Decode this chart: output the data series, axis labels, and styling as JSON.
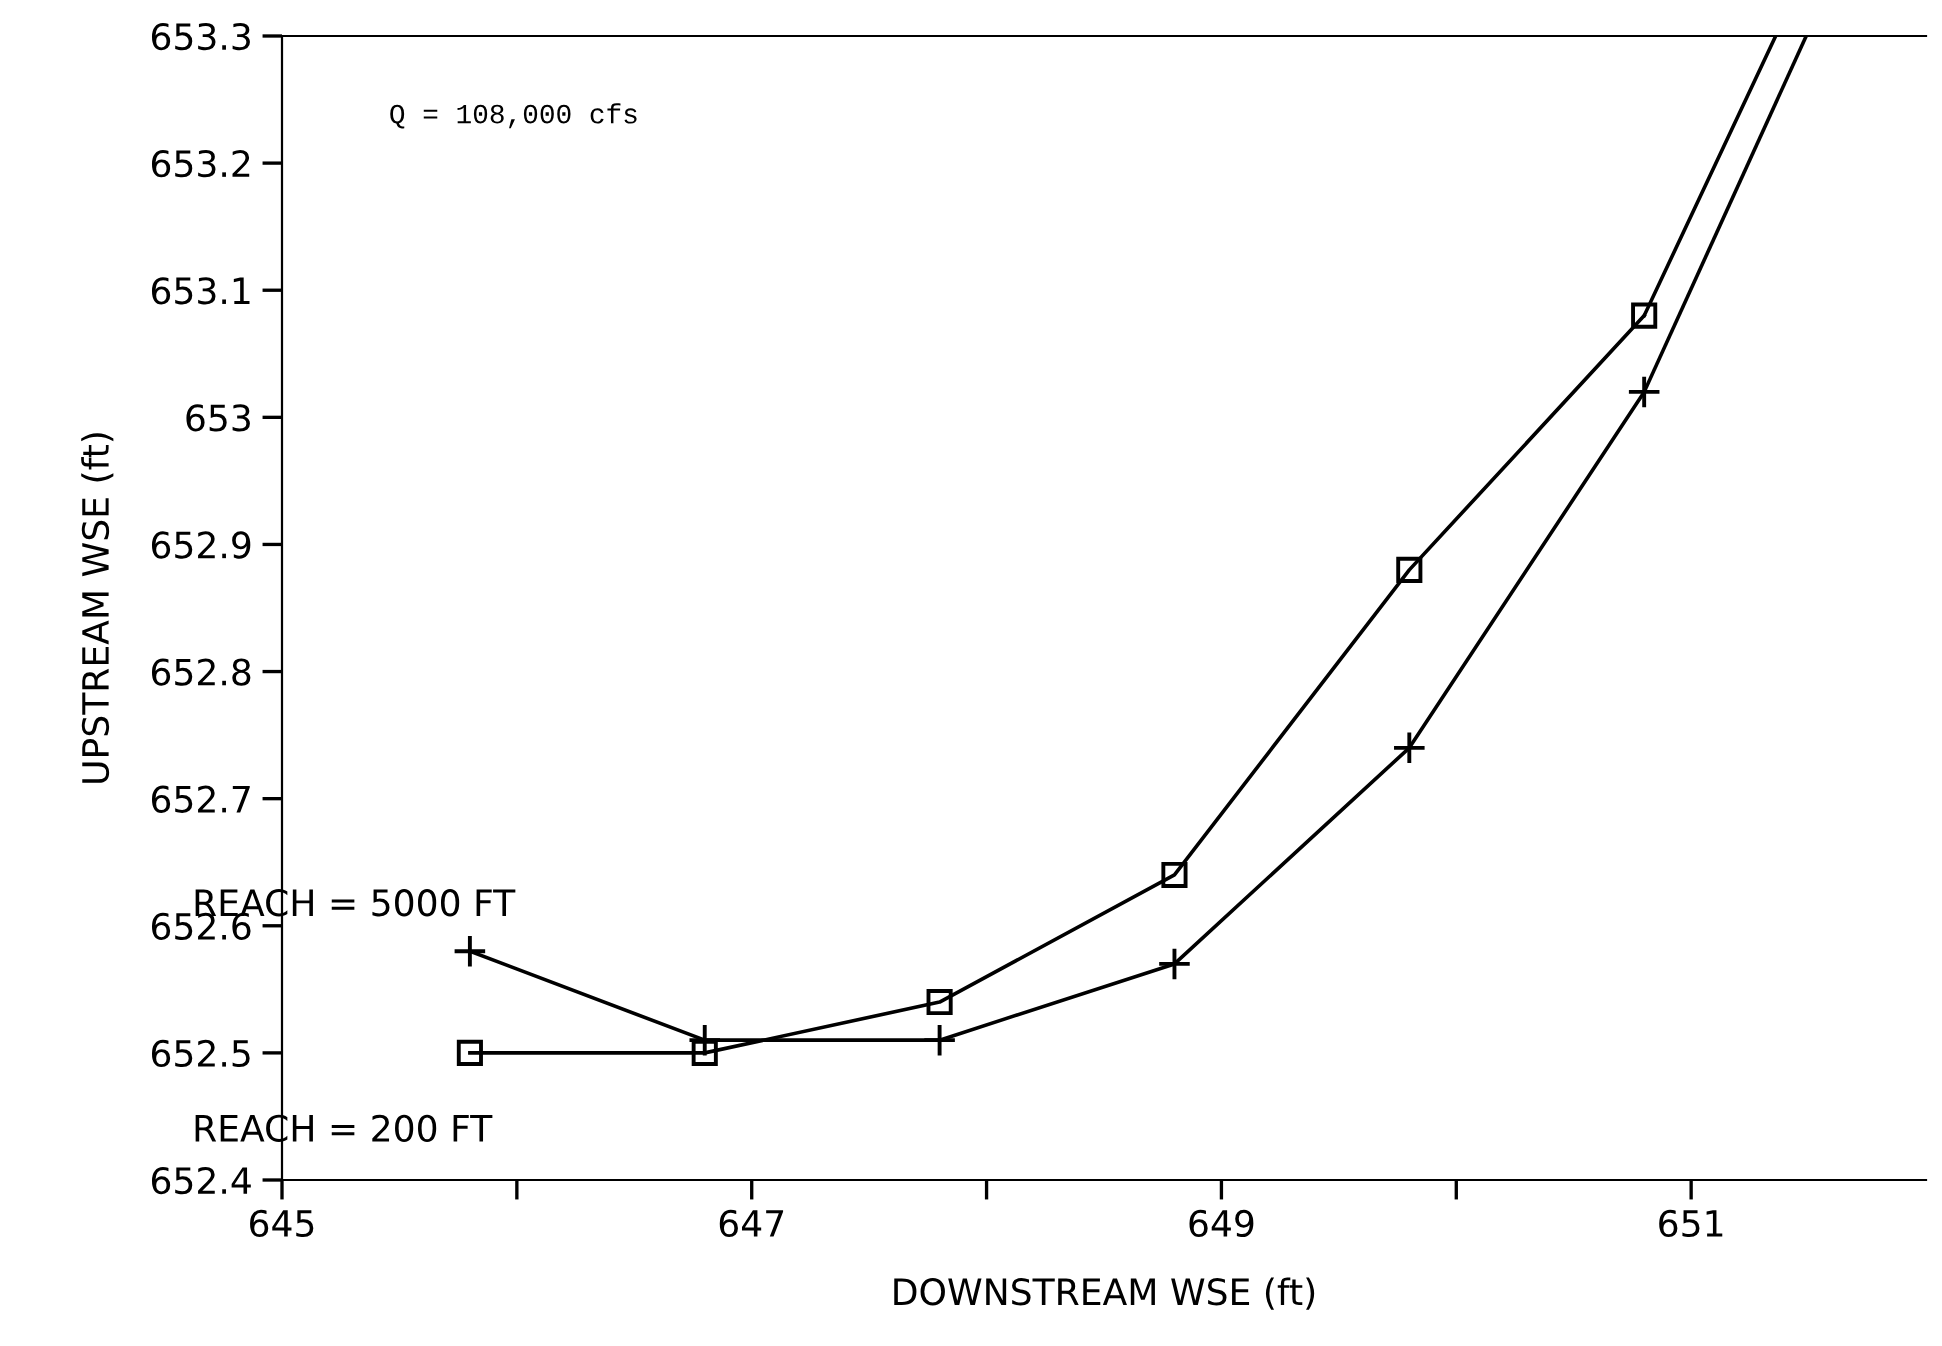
{
  "chart_data": {
    "type": "line",
    "xlabel": "DOWNSTREAM WSE (ft)",
    "ylabel": "UPSTREAM WSE (ft)",
    "xlim": [
      645,
      652
    ],
    "xticks": [
      645,
      {
        "value": 646,
        "label": null
      },
      647,
      {
        "value": 648,
        "label": null
      },
      649,
      {
        "value": 650,
        "label": null
      },
      651
    ],
    "ylim": [
      652.4,
      653.3
    ],
    "yticks": [
      652.4,
      652.5,
      652.6,
      652.7,
      652.8,
      652.9,
      653,
      653.1,
      653.2,
      653.3
    ],
    "grid": false,
    "legend": false,
    "line_style": "solid",
    "series": [
      {
        "color": "#000000",
        "marker": "square",
        "x": [
          645.8,
          646.8,
          647.8,
          648.8,
          649.8,
          650.8
        ],
        "values": [
          652.5,
          652.5,
          652.54,
          652.64,
          652.88,
          653.08
        ]
      },
      {
        "color": "#000000",
        "marker": "none",
        "x": [
          650.8,
          651.36
        ],
        "values": [
          653.08,
          653.3
        ]
      },
      {
        "color": "#000000",
        "marker": "cross",
        "x": [
          645.8,
          646.8,
          647.8,
          648.8,
          649.8,
          650.8
        ],
        "values": [
          652.58,
          652.51,
          652.51,
          652.57,
          652.74,
          653.02
        ]
      },
      {
        "color": "#000000",
        "marker": "none",
        "x": [
          650.8,
          651.49
        ],
        "values": [
          653.02,
          653.3
        ]
      }
    ],
    "annotations": [
      "Q = 108,000 cfs",
      {
        "text": "REACH = 5000 FT",
        "x": 645.8,
        "y": 652.58
      },
      {
        "text": "REACH = 200 FT",
        "x": 645.8,
        "y": 652.5
      }
    ]
  }
}
